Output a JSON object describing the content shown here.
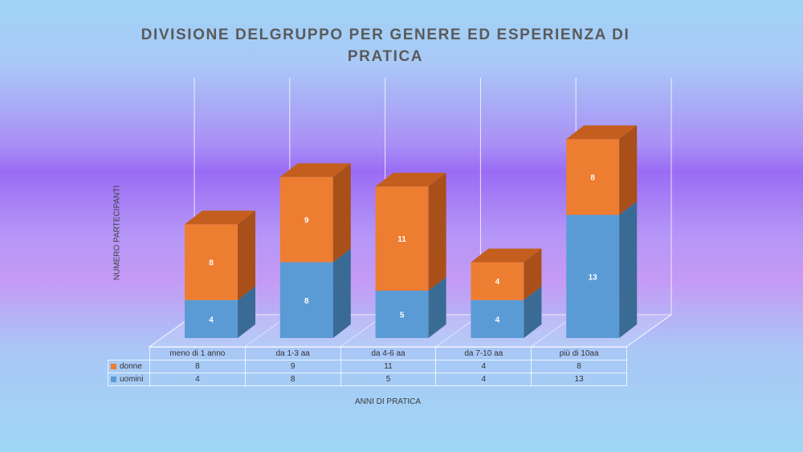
{
  "title": {
    "line1": "DIVISIONE DELGRUPPO PER GENERE ED ESPERIENZA DI",
    "line2": "PRATICA"
  },
  "colors": {
    "donne": "#ed7d31",
    "uomini": "#5b9bd5",
    "donne_side": "#a84f1a",
    "uomini_side": "#3a6b94",
    "donne_top": "#c35e1e"
  },
  "chart_data": {
    "type": "bar",
    "stacked": true,
    "three_d": true,
    "title": "DIVISIONE DELGRUPPO PER GENERE ED ESPERIENZA DI PRATICA",
    "xlabel": "ANNI DI PRATICA",
    "ylabel": "NUMERO PARTECIPANTI",
    "categories": [
      "meno di 1 anno",
      "da 1-3 aa",
      "da 4-6 aa",
      "da 7-10 aa",
      "più di 10aa"
    ],
    "series": [
      {
        "name": "uomini",
        "values": [
          4,
          8,
          5,
          4,
          13
        ]
      },
      {
        "name": "donne",
        "values": [
          8,
          9,
          11,
          4,
          8
        ]
      }
    ],
    "data_table": true,
    "grid": "vertical"
  }
}
